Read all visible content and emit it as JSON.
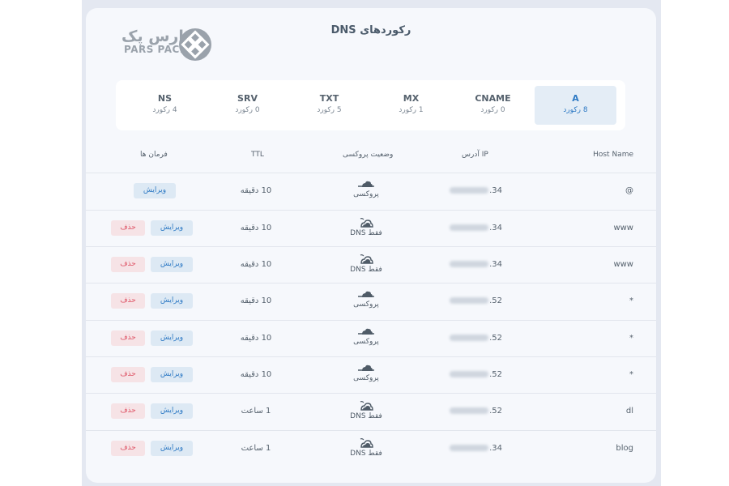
{
  "header": {
    "title": "رکوردهای DNS",
    "logo_fa": "پارس پک",
    "logo_en": "PARS PACK"
  },
  "tabs": [
    {
      "name": "A",
      "count": "8 رکورد",
      "active": true
    },
    {
      "name": "CNAME",
      "count": "0 رکورد",
      "active": false
    },
    {
      "name": "MX",
      "count": "1 رکورد",
      "active": false
    },
    {
      "name": "TXT",
      "count": "5 رکورد",
      "active": false
    },
    {
      "name": "SRV",
      "count": "0 رکورد",
      "active": false
    },
    {
      "name": "NS",
      "count": "4 رکورد",
      "active": false
    }
  ],
  "columns": {
    "host": "Host Name",
    "ip": "آدرس IP",
    "proxy": "وضعیت پروکسی",
    "ttl": "TTL",
    "actions": "فرمان ها"
  },
  "buttons": {
    "edit": "ویرایش",
    "delete": "حذف"
  },
  "rows": [
    {
      "host": "@",
      "ip_suffix": ".34",
      "proxy": "پروکسی",
      "ttl": "10 دقیقه",
      "deletable": false
    },
    {
      "host": "www",
      "ip_suffix": ".34",
      "proxy": "فقط DNS",
      "ttl": "10 دقیقه",
      "deletable": true
    },
    {
      "host": "www",
      "ip_suffix": ".34",
      "proxy": "فقط DNS",
      "ttl": "10 دقیقه",
      "deletable": true
    },
    {
      "host": "*",
      "ip_suffix": ".52",
      "proxy": "پروکسی",
      "ttl": "10 دقیقه",
      "deletable": true
    },
    {
      "host": "*",
      "ip_suffix": ".52",
      "proxy": "پروکسی",
      "ttl": "10 دقیقه",
      "deletable": true
    },
    {
      "host": "*",
      "ip_suffix": ".52",
      "proxy": "پروکسی",
      "ttl": "10 دقیقه",
      "deletable": true
    },
    {
      "host": "dl",
      "ip_suffix": ".52",
      "proxy": "فقط DNS",
      "ttl": "1 ساعت",
      "deletable": true
    },
    {
      "host": "blog",
      "ip_suffix": ".34",
      "proxy": "فقط DNS",
      "ttl": "1 ساعت",
      "deletable": true
    }
  ],
  "colors": {
    "accent": "#2d79c4",
    "delete": "#de5365",
    "background": "#e4e8f1"
  },
  "icons": {
    "proxied": "cloud-proxy-icon",
    "dns_only": "cloud-dns-only-icon"
  }
}
